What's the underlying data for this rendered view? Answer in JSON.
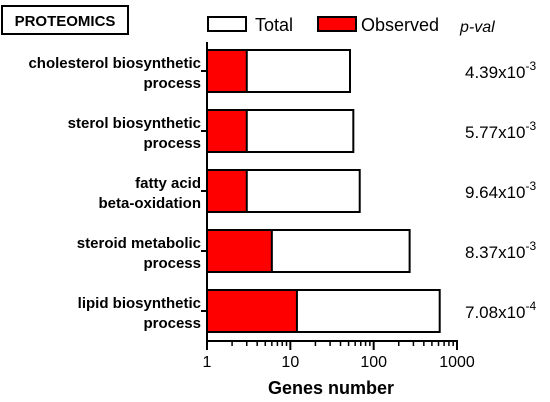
{
  "chart_data": {
    "type": "bar",
    "orientation": "horizontal",
    "panel_label": "PROTEOMICS",
    "xlabel": "Genes number",
    "x_scale": "log",
    "xlim": [
      1,
      1000
    ],
    "x_ticks": [
      1,
      10,
      100,
      1000
    ],
    "x_tick_labels": [
      "1",
      "10",
      "100",
      "1000"
    ],
    "categories": [
      {
        "line1": "cholesterol biosynthetic",
        "line2": "process"
      },
      {
        "line1": "sterol biosynthetic",
        "line2": "process"
      },
      {
        "line1": "fatty acid",
        "line2": "beta-oxidation"
      },
      {
        "line1": "steroid metabolic",
        "line2": "process"
      },
      {
        "line1": "lipid biosynthetic",
        "line2": "process"
      }
    ],
    "series": [
      {
        "name": "Total",
        "color": "#ffffff",
        "values": [
          52,
          57,
          68,
          270,
          620
        ]
      },
      {
        "name": "Observed",
        "color": "#ff0000",
        "values": [
          3,
          3,
          3,
          6,
          12
        ]
      }
    ],
    "pval_header": "p-val",
    "pvalues": [
      {
        "base": "4.39x10",
        "exp": "-3"
      },
      {
        "base": "5.77x10",
        "exp": "-3"
      },
      {
        "base": "9.64x10",
        "exp": "-3"
      },
      {
        "base": "8.37x10",
        "exp": "-3"
      },
      {
        "base": "7.08x10",
        "exp": "-4"
      }
    ],
    "legend_position": "top"
  }
}
